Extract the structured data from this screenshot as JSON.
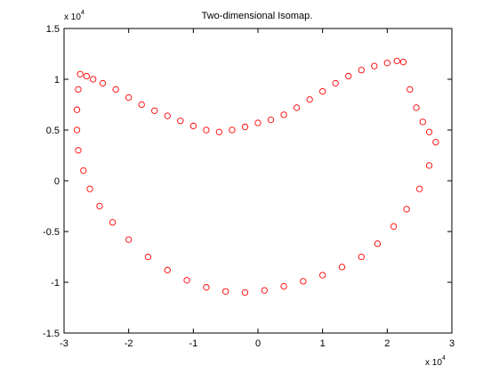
{
  "chart_data": {
    "type": "scatter",
    "title": "Two-dimensional Isomap.",
    "xlabel": "",
    "ylabel": "",
    "xlim": [
      -30000,
      30000
    ],
    "ylim": [
      -15000,
      15000
    ],
    "x_ticks": [
      -30000,
      -20000,
      -10000,
      0,
      10000,
      20000,
      30000
    ],
    "y_ticks": [
      -15000,
      -10000,
      -5000,
      0,
      5000,
      10000,
      15000
    ],
    "x_tick_labels": [
      "-3",
      "-2",
      "-1",
      "0",
      "1",
      "2",
      "3"
    ],
    "y_tick_labels": [
      "-1.5",
      "-1",
      "-0.5",
      "0",
      "0.5",
      "1",
      "1.5"
    ],
    "x_exponent": {
      "base": "x 10",
      "power": "4"
    },
    "y_exponent": {
      "base": "x 10",
      "power": "4"
    },
    "grid": false,
    "marker": "open-circle",
    "marker_color": "#ff0000",
    "series": [
      {
        "points": [
          [
            -27500,
            10500
          ],
          [
            -26500,
            10300
          ],
          [
            -25500,
            10000
          ],
          [
            -24000,
            9600
          ],
          [
            -22000,
            9000
          ],
          [
            -20000,
            8200
          ],
          [
            -18000,
            7500
          ],
          [
            -16000,
            6900
          ],
          [
            -14000,
            6400
          ],
          [
            -12000,
            5900
          ],
          [
            -10000,
            5400
          ],
          [
            -8000,
            5000
          ],
          [
            -6000,
            4800
          ],
          [
            -4000,
            5000
          ],
          [
            -2000,
            5300
          ],
          [
            0,
            5700
          ],
          [
            2000,
            6000
          ],
          [
            4000,
            6500
          ],
          [
            6000,
            7200
          ],
          [
            8000,
            8000
          ],
          [
            10000,
            8800
          ],
          [
            12000,
            9600
          ],
          [
            14000,
            10300
          ],
          [
            16000,
            10900
          ],
          [
            18000,
            11300
          ],
          [
            20000,
            11600
          ],
          [
            21500,
            11800
          ],
          [
            22500,
            11700
          ],
          [
            23500,
            9000
          ],
          [
            24500,
            7200
          ],
          [
            25500,
            5800
          ],
          [
            26500,
            4800
          ],
          [
            27500,
            3800
          ],
          [
            26500,
            1500
          ],
          [
            25000,
            -800
          ],
          [
            23000,
            -2800
          ],
          [
            21000,
            -4500
          ],
          [
            18500,
            -6200
          ],
          [
            16000,
            -7500
          ],
          [
            13000,
            -8500
          ],
          [
            10000,
            -9300
          ],
          [
            7000,
            -9900
          ],
          [
            4000,
            -10400
          ],
          [
            1000,
            -10800
          ],
          [
            -2000,
            -11000
          ],
          [
            -5000,
            -10900
          ],
          [
            -8000,
            -10500
          ],
          [
            -11000,
            -9800
          ],
          [
            -14000,
            -8800
          ],
          [
            -17000,
            -7500
          ],
          [
            -20000,
            -5800
          ],
          [
            -22500,
            -4100
          ],
          [
            -24500,
            -2500
          ],
          [
            -26000,
            -800
          ],
          [
            -27000,
            1000
          ],
          [
            -27800,
            3000
          ],
          [
            -28000,
            5000
          ],
          [
            -28000,
            7000
          ],
          [
            -27800,
            9000
          ]
        ]
      }
    ]
  }
}
